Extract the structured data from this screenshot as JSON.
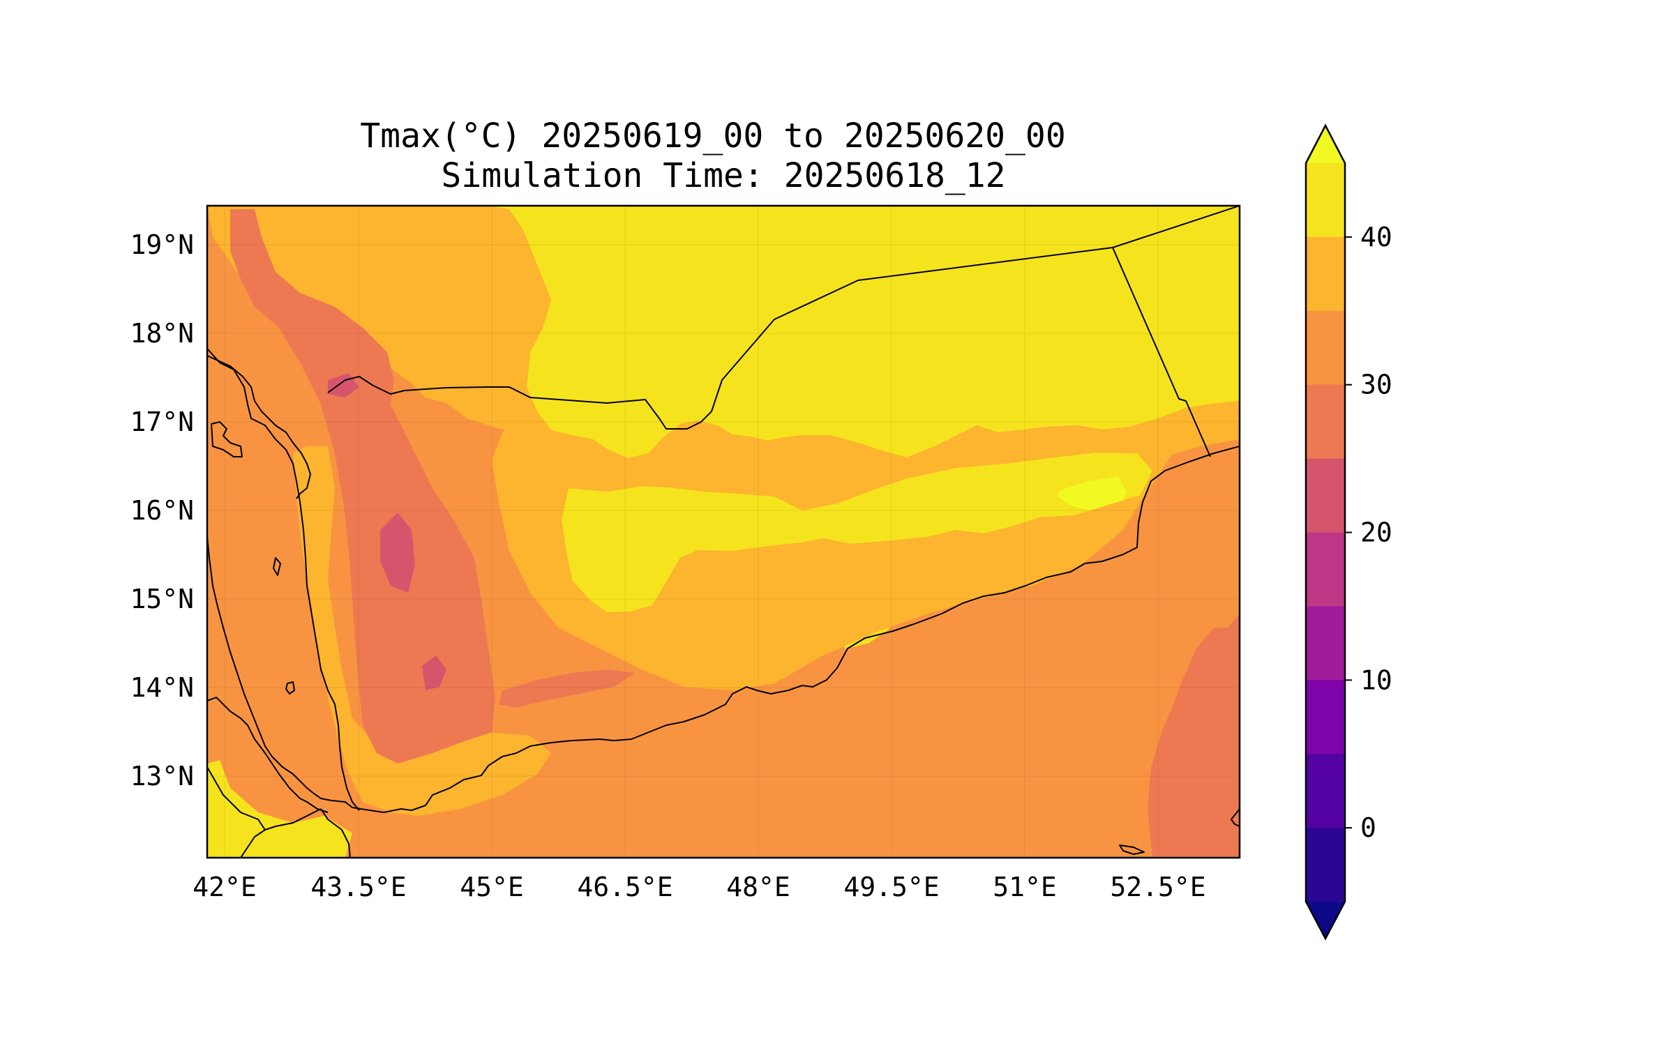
{
  "title": {
    "line1": "Tmax(°C) 20250619_00 to 20250620_00",
    "line2": "Simulation Time: 20250618_12"
  },
  "map": {
    "lon_ticks": [
      "42°E",
      "43.5°E",
      "45°E",
      "46.5°E",
      "48°E",
      "49.5°E",
      "51°E",
      "52.5°E"
    ],
    "lat_ticks": [
      "19°N",
      "18°N",
      "17°N",
      "16°N",
      "15°N",
      "14°N",
      "13°N"
    ],
    "extent": {
      "lon": [
        41.95,
        53.75
      ],
      "lat": [
        12.1,
        19.45
      ]
    }
  },
  "colorbar": {
    "ticks": [
      "40",
      "30",
      "20",
      "10",
      "0"
    ],
    "levels": [
      -5,
      0,
      5,
      10,
      15,
      20,
      25,
      30,
      35,
      40,
      45
    ],
    "colors": [
      "#0d0887",
      "#2b0594",
      "#5402a3",
      "#7e03a8",
      "#a11b9b",
      "#bd3786",
      "#d6556d",
      "#ed7953",
      "#f89441",
      "#fdb42f",
      "#f5e31e",
      "#f0f921"
    ],
    "extend": "both"
  }
}
